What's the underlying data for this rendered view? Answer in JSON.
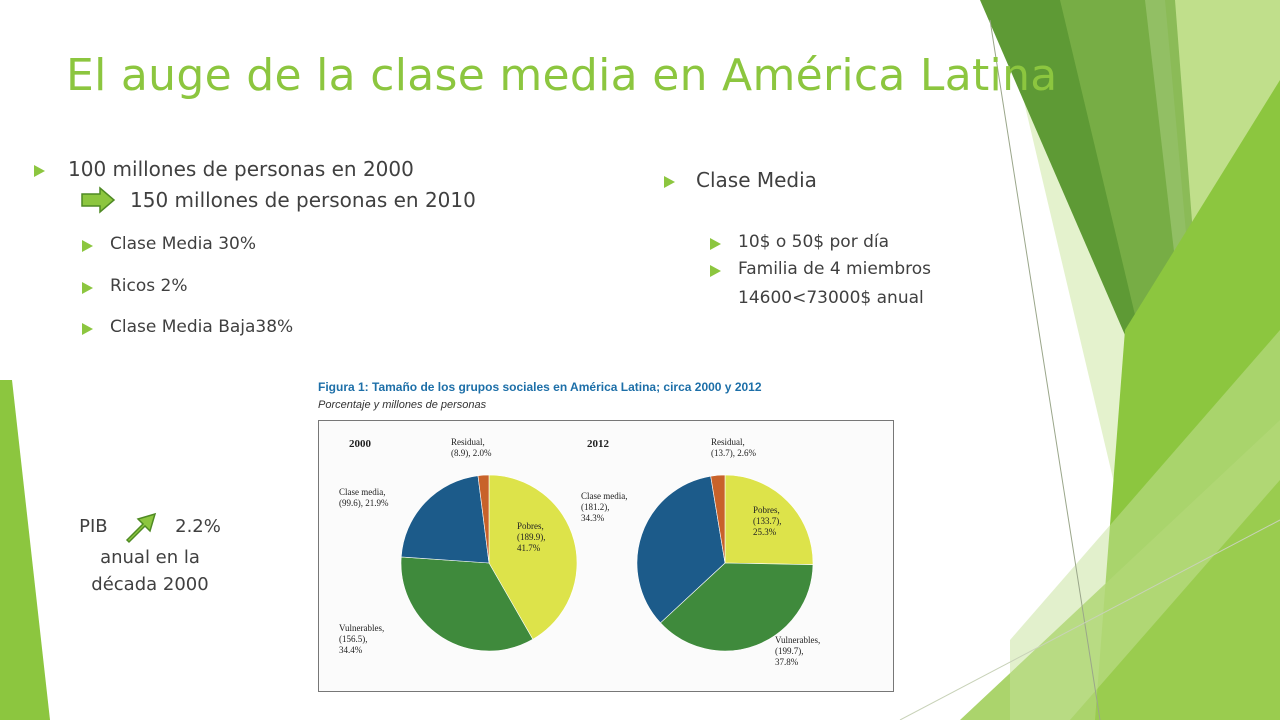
{
  "slide": {
    "title": "El auge de la clase media en América Latina",
    "colors": {
      "accent": "#8cc63f",
      "text": "#404040",
      "deco_dark": "#5a9a2e",
      "deco_light": "#d8ecb8"
    }
  },
  "left_list": {
    "line1": "100 millones de personas en 2000",
    "line2": "150 millones de personas en 2010",
    "items": [
      "Clase Media 30%",
      "Ricos 2%",
      "Clase Media Baja38%"
    ]
  },
  "right_list": {
    "heading": "Clase Media",
    "item1": "10$ o 50$ por día",
    "item2_line1": "Familia de 4 miembros",
    "item2_line2": "14600<73000$ anual"
  },
  "pib": {
    "label": "PIB",
    "value": "2.2%",
    "line2": "anual en la",
    "line3": "década 2000"
  },
  "figure": {
    "title": "Figura 1: Tamaño de los grupos sociales en América Latina; circa 2000 y 2012",
    "subtitle": "Porcentaje y millones de personas"
  },
  "chart_data": [
    {
      "type": "pie",
      "title": "2000",
      "categories": [
        "Pobres",
        "Vulnerables",
        "Clase media",
        "Residual"
      ],
      "values": [
        41.7,
        34.4,
        21.9,
        2.0
      ],
      "millions": [
        189.9,
        156.5,
        99.6,
        8.9
      ],
      "labels": [
        [
          "Pobres,",
          "(189.9),",
          "41.7%"
        ],
        [
          "Vulnerables,",
          "(156.5),",
          "34.4%"
        ],
        [
          "Clase media,",
          "(99.6), 21.9%"
        ],
        [
          "Residual,",
          "(8.9), 2.0%"
        ]
      ],
      "colors": [
        "#dde34a",
        "#3f8a3c",
        "#1c5b8a",
        "#c8622a"
      ]
    },
    {
      "type": "pie",
      "title": "2012",
      "categories": [
        "Pobres",
        "Vulnerables",
        "Clase media",
        "Residual"
      ],
      "values": [
        25.3,
        37.8,
        34.3,
        2.6
      ],
      "millions": [
        133.7,
        199.7,
        181.2,
        13.7
      ],
      "labels": [
        [
          "Pobres,",
          "(133.7),",
          "25.3%"
        ],
        [
          "Vulnerables,",
          "(199.7),",
          "37.8%"
        ],
        [
          "Clase media,",
          "(181.2),",
          "34.3%"
        ],
        [
          "Residual,",
          "(13.7), 2.6%"
        ]
      ],
      "colors": [
        "#dde34a",
        "#3f8a3c",
        "#1c5b8a",
        "#c8622a"
      ]
    }
  ]
}
